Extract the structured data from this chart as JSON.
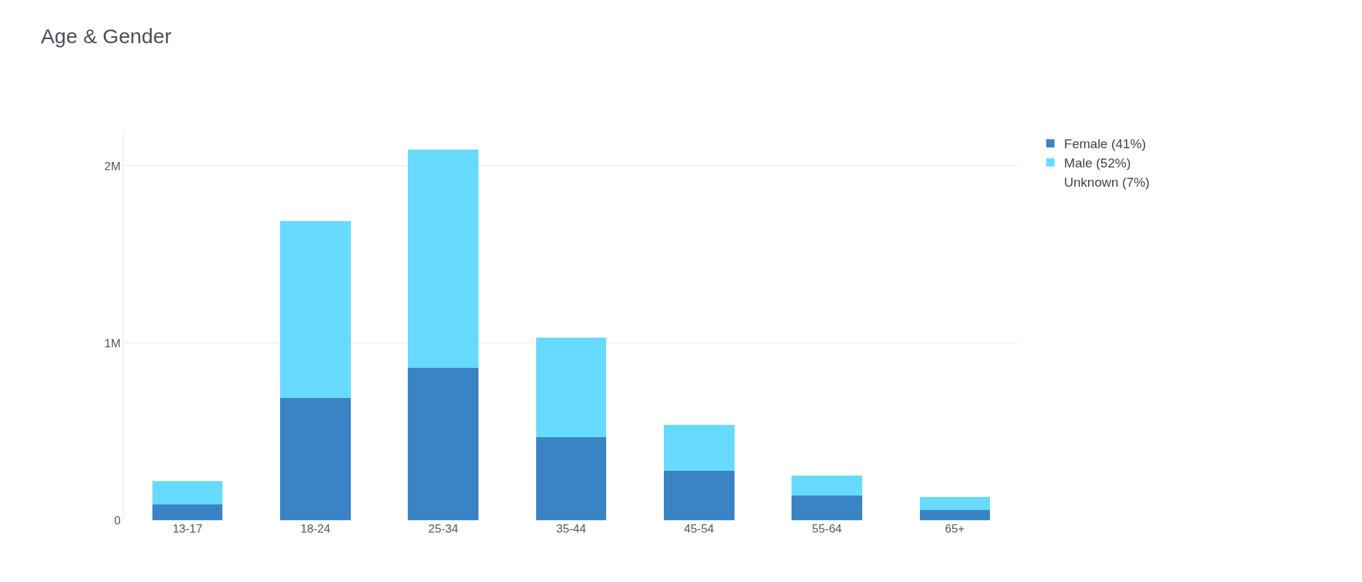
{
  "chart_data": {
    "type": "bar",
    "title": "Age & Gender",
    "stacked": true,
    "categories": [
      "13-17",
      "18-24",
      "25-34",
      "35-44",
      "45-54",
      "55-64",
      "65+"
    ],
    "series": [
      {
        "name": "Female (41%)",
        "color": "#3a84c6",
        "values": [
          0.09,
          0.69,
          0.86,
          0.47,
          0.28,
          0.14,
          0.06
        ]
      },
      {
        "name": "Male (52%)",
        "color": "#66dbfd",
        "values": [
          0.13,
          1.0,
          1.23,
          0.56,
          0.26,
          0.11,
          0.07
        ]
      },
      {
        "name": "Unknown (7%)",
        "values": [
          null,
          null,
          null,
          null,
          null,
          null,
          null
        ]
      }
    ],
    "ylim": [
      0,
      2.2
    ],
    "yticks": [
      {
        "value": 0,
        "label": "0"
      },
      {
        "value": 1,
        "label": "1M"
      },
      {
        "value": 2,
        "label": "2M"
      }
    ],
    "grid": "y",
    "legend": "top right"
  }
}
